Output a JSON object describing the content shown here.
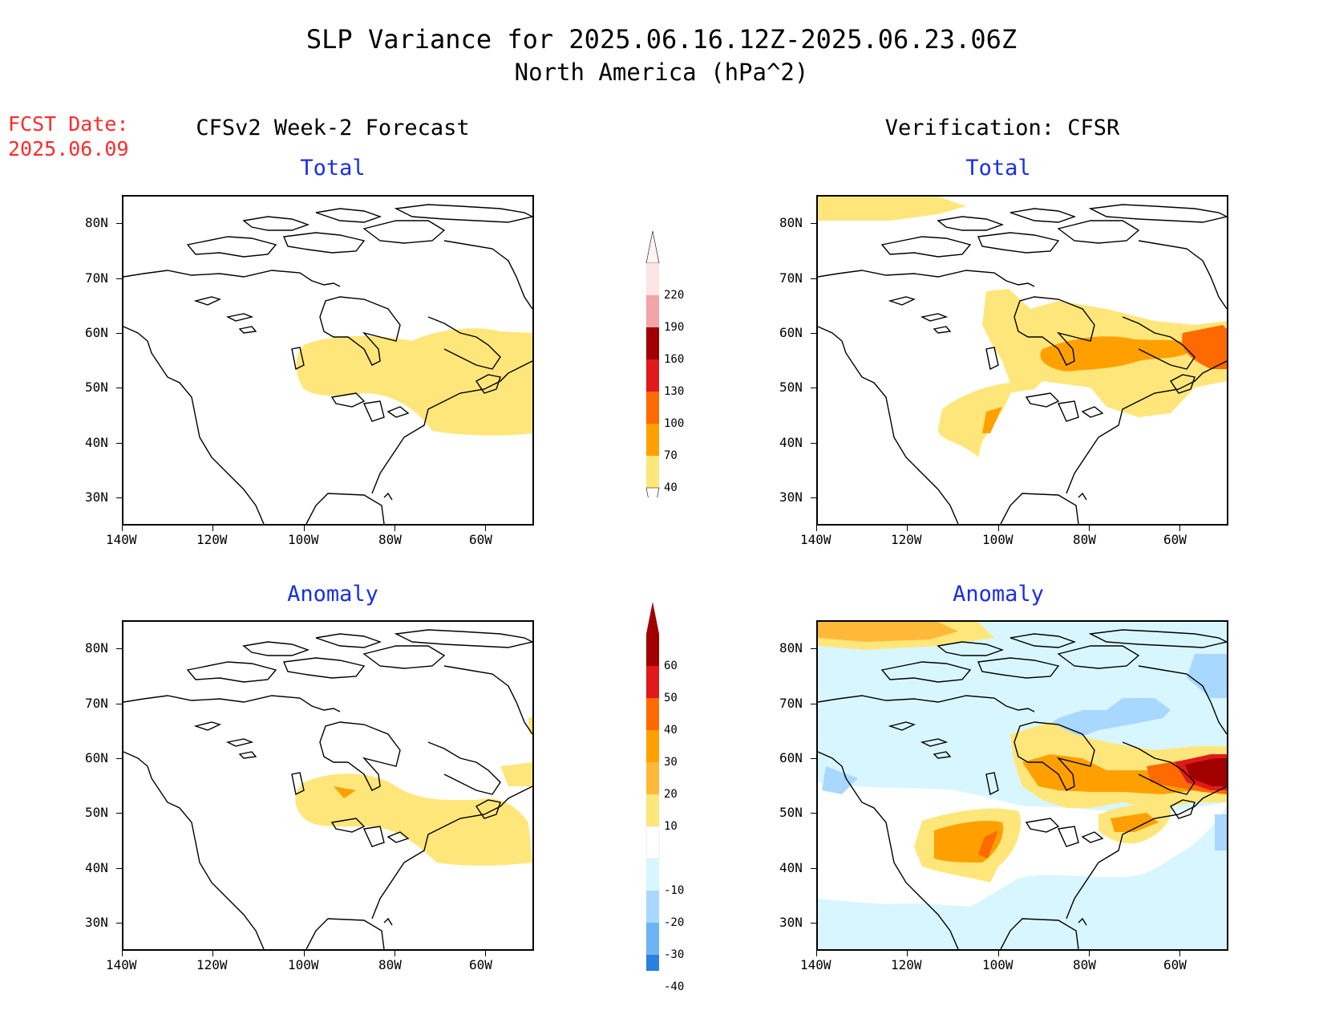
{
  "header": {
    "title": "SLP Variance for 2025.06.16.12Z-2025.06.23.06Z",
    "subtitle": "North America (hPa^2)"
  },
  "fcst": {
    "label": "FCST Date:",
    "date": "2025.06.09"
  },
  "columns": {
    "left": "CFSv2 Week-2 Forecast",
    "right": "Verification: CFSR"
  },
  "panels": {
    "fcst_total": "Total",
    "fcst_anomaly": "Anomaly",
    "ver_total": "Total",
    "ver_anomaly": "Anomaly"
  },
  "axes": {
    "lat_labels": [
      "80N",
      "70N",
      "60N",
      "50N",
      "40N",
      "30N"
    ],
    "lon_labels": [
      "140W",
      "120W",
      "100W",
      "80W",
      "60W"
    ]
  },
  "colorbar_total": {
    "labels": [
      "220",
      "190",
      "160",
      "130",
      "100",
      "70",
      "40"
    ],
    "colors": [
      "#fde5e3",
      "#f2a4a6",
      "#a00000",
      "#e01a1a",
      "#ff6a00",
      "#ffa000",
      "#ffe67a"
    ]
  },
  "colorbar_anomaly": {
    "labels": [
      "60",
      "50",
      "40",
      "30",
      "20",
      "10",
      "-10",
      "-20",
      "-30",
      "-40"
    ],
    "colors_warm": [
      "#a00000",
      "#e01a1a",
      "#ff6a00",
      "#ffa000",
      "#ffb938",
      "#ffe67a"
    ],
    "colors_cool": [
      "#d8f6ff",
      "#a8d8ff",
      "#6cb4f5",
      "#2b7fe0",
      "#1466d0"
    ]
  },
  "colors": {
    "yellow": "#ffe67a",
    "lightorange": "#ffbb38",
    "orange": "#ffa000",
    "darkorange": "#ff6a00",
    "red": "#e01a1a",
    "darkred": "#a00000",
    "lightcyan": "#d8f6ff",
    "lightblue": "#a8d8ff",
    "midblue": "#6cb4f5"
  }
}
